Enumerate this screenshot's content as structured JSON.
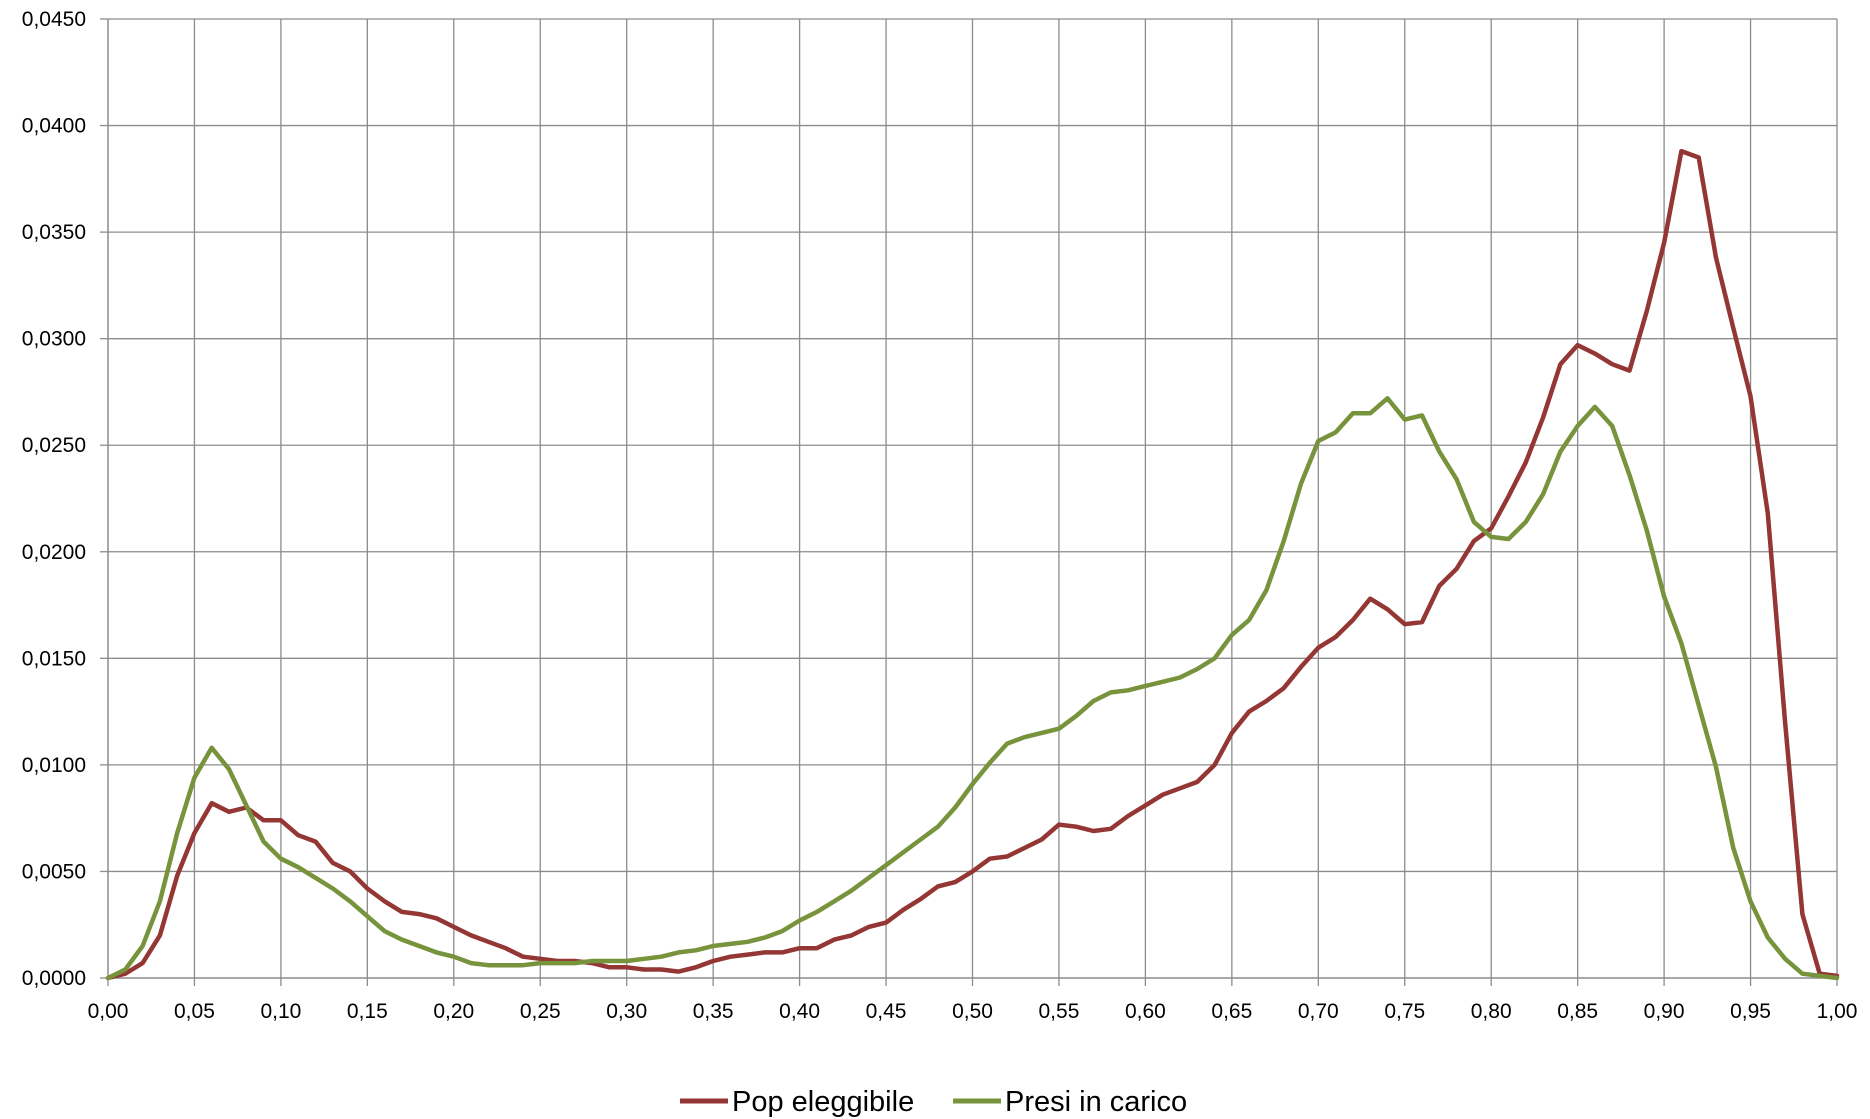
{
  "chart_data": {
    "type": "line",
    "title": "",
    "xlabel": "",
    "ylabel": "",
    "xlim": [
      0,
      1
    ],
    "ylim": [
      0,
      0.045
    ],
    "grid": true,
    "legend_position": "bottom",
    "x_tick_labels": [
      "0,00",
      "0,05",
      "0,10",
      "0,15",
      "0,20",
      "0,25",
      "0,30",
      "0,35",
      "0,40",
      "0,45",
      "0,50",
      "0,55",
      "0,60",
      "0,65",
      "0,70",
      "0,75",
      "0,80",
      "0,85",
      "0,90",
      "0,95",
      "1,00"
    ],
    "y_tick_labels": [
      "0,0000",
      "0,0050",
      "0,0100",
      "0,0150",
      "0,0200",
      "0,0250",
      "0,0300",
      "0,0350",
      "0,0400",
      "0,0450"
    ],
    "x": [
      0.0,
      0.01,
      0.02,
      0.03,
      0.04,
      0.05,
      0.06,
      0.07,
      0.08,
      0.09,
      0.1,
      0.11,
      0.12,
      0.13,
      0.14,
      0.15,
      0.16,
      0.17,
      0.18,
      0.19,
      0.2,
      0.21,
      0.22,
      0.23,
      0.24,
      0.25,
      0.26,
      0.27,
      0.28,
      0.29,
      0.3,
      0.31,
      0.32,
      0.33,
      0.34,
      0.35,
      0.36,
      0.37,
      0.38,
      0.39,
      0.4,
      0.41,
      0.42,
      0.43,
      0.44,
      0.45,
      0.46,
      0.47,
      0.48,
      0.49,
      0.5,
      0.51,
      0.52,
      0.53,
      0.54,
      0.55,
      0.56,
      0.57,
      0.58,
      0.59,
      0.6,
      0.61,
      0.62,
      0.63,
      0.64,
      0.65,
      0.66,
      0.67,
      0.68,
      0.69,
      0.7,
      0.71,
      0.72,
      0.73,
      0.74,
      0.75,
      0.76,
      0.77,
      0.78,
      0.79,
      0.8,
      0.81,
      0.82,
      0.83,
      0.84,
      0.85,
      0.86,
      0.87,
      0.88,
      0.89,
      0.9,
      0.91,
      0.92,
      0.93,
      0.94,
      0.95,
      0.96,
      0.97,
      0.98,
      0.99,
      1.0
    ],
    "series": [
      {
        "name": "Pop eleggibile",
        "color": "#943634",
        "values": [
          0.0,
          0.0002,
          0.0007,
          0.002,
          0.0048,
          0.0068,
          0.0082,
          0.0078,
          0.008,
          0.0074,
          0.0074,
          0.0067,
          0.0064,
          0.0054,
          0.005,
          0.0042,
          0.0036,
          0.0031,
          0.003,
          0.0028,
          0.0024,
          0.002,
          0.0017,
          0.0014,
          0.001,
          0.0009,
          0.0008,
          0.0008,
          0.0007,
          0.0005,
          0.0005,
          0.0004,
          0.0004,
          0.0003,
          0.0005,
          0.0008,
          0.001,
          0.0011,
          0.0012,
          0.0012,
          0.0014,
          0.0014,
          0.0018,
          0.002,
          0.0024,
          0.0026,
          0.0032,
          0.0037,
          0.0043,
          0.0045,
          0.005,
          0.0056,
          0.0057,
          0.0061,
          0.0065,
          0.0072,
          0.0071,
          0.0069,
          0.007,
          0.0076,
          0.0081,
          0.0086,
          0.0089,
          0.0092,
          0.01,
          0.0115,
          0.0125,
          0.013,
          0.0136,
          0.0146,
          0.0155,
          0.016,
          0.0168,
          0.0178,
          0.0173,
          0.0166,
          0.0167,
          0.0184,
          0.0192,
          0.0205,
          0.0211,
          0.0226,
          0.0242,
          0.0263,
          0.0288,
          0.0297,
          0.0293,
          0.0288,
          0.0285,
          0.0313,
          0.0345,
          0.0388,
          0.0385,
          0.0338,
          0.0305,
          0.0273,
          0.0218,
          0.012,
          0.003,
          0.0002,
          0.0001
        ]
      },
      {
        "name": "Presi in carico",
        "color": "#77933c",
        "values": [
          0.0,
          0.0004,
          0.0015,
          0.0036,
          0.0068,
          0.0094,
          0.0108,
          0.0098,
          0.0081,
          0.0064,
          0.0056,
          0.0052,
          0.0047,
          0.0042,
          0.0036,
          0.0029,
          0.0022,
          0.0018,
          0.0015,
          0.0012,
          0.001,
          0.0007,
          0.0006,
          0.0006,
          0.0006,
          0.0007,
          0.0007,
          0.0007,
          0.0008,
          0.0008,
          0.0008,
          0.0009,
          0.001,
          0.0012,
          0.0013,
          0.0015,
          0.0016,
          0.0017,
          0.0019,
          0.0022,
          0.0027,
          0.0031,
          0.0036,
          0.0041,
          0.0047,
          0.0053,
          0.0059,
          0.0065,
          0.0071,
          0.008,
          0.0091,
          0.0101,
          0.011,
          0.0113,
          0.0115,
          0.0117,
          0.0123,
          0.013,
          0.0134,
          0.0135,
          0.0137,
          0.0139,
          0.0141,
          0.0145,
          0.015,
          0.0161,
          0.0168,
          0.0182,
          0.0205,
          0.0232,
          0.0252,
          0.0256,
          0.0265,
          0.0265,
          0.0272,
          0.0262,
          0.0264,
          0.0247,
          0.0234,
          0.0214,
          0.0207,
          0.0206,
          0.0214,
          0.0227,
          0.0247,
          0.0259,
          0.0268,
          0.0259,
          0.0236,
          0.021,
          0.0179,
          0.0157,
          0.0128,
          0.0099,
          0.0061,
          0.0036,
          0.0019,
          0.0009,
          0.0002,
          0.0001,
          0.0
        ]
      }
    ]
  }
}
